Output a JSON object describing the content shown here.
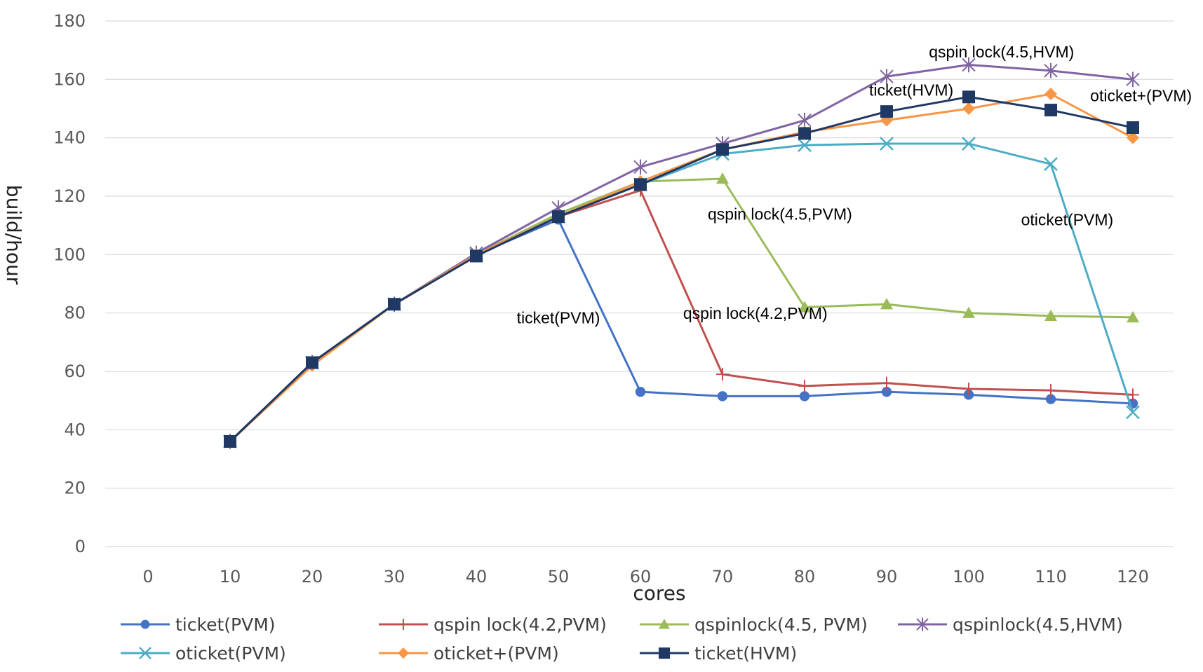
{
  "chart_data": {
    "type": "line",
    "xlabel": "cores",
    "ylabel": "build/hour",
    "x_ticks": [
      "0",
      "10",
      "20",
      "30",
      "40",
      "50",
      "60",
      "70",
      "80",
      "90",
      "100",
      "110",
      "120"
    ],
    "y_ticks": [
      "0",
      "20",
      "40",
      "60",
      "80",
      "100",
      "120",
      "140",
      "160",
      "180"
    ],
    "ylim": [
      0,
      180
    ],
    "x": [
      10,
      20,
      30,
      40,
      50,
      60,
      70,
      80,
      90,
      100,
      110,
      120
    ],
    "grid": "horizontal",
    "legend_position": "bottom",
    "series": [
      {
        "name": "ticket(PVM)",
        "color": "#4472C4",
        "marker": "circle",
        "values": [
          36,
          63,
          83,
          100,
          112,
          53,
          51.5,
          51.5,
          53,
          52,
          50.5,
          49
        ]
      },
      {
        "name": "qspin lock(4.2,PVM)",
        "color": "#C0504D",
        "marker": "plus",
        "values": [
          36,
          63,
          83,
          100,
          113,
          122,
          59,
          55,
          56,
          54,
          53.5,
          52
        ]
      },
      {
        "name": "qspinlock(4.5, PVM)",
        "color": "#9BBB59",
        "marker": "triangle",
        "values": [
          36,
          63,
          83,
          100,
          114,
          125,
          126,
          82,
          83,
          80,
          79,
          78.5
        ]
      },
      {
        "name": "qspinlock(4.5,HVM)",
        "color": "#8064A2",
        "marker": "star",
        "values": [
          36,
          63,
          83,
          100.5,
          116,
          130,
          138,
          146,
          161,
          165,
          163,
          160
        ]
      },
      {
        "name": "oticket(PVM)",
        "color": "#4BACC6",
        "marker": "x",
        "values": [
          36,
          63,
          83,
          100,
          113,
          124,
          134.5,
          137.5,
          138,
          138,
          131,
          46
        ]
      },
      {
        "name": "oticket+(PVM)",
        "color": "#F79646",
        "marker": "diamond",
        "values": [
          36,
          62,
          83,
          100,
          113,
          125,
          136,
          142,
          146,
          150,
          155,
          140
        ]
      },
      {
        "name": "ticket(HVM)",
        "color": "#1F3864",
        "marker": "square",
        "values": [
          36,
          63,
          83,
          99.5,
          113,
          124,
          136,
          141.5,
          149,
          154,
          149.5,
          143.5
        ]
      }
    ],
    "annotations": [
      {
        "text": "qspin lock(4.5,HVM)",
        "x": 104,
        "y": 167.5
      },
      {
        "text": "ticket(HVM)",
        "x": 93,
        "y": 154.5
      },
      {
        "text": "oticket+(PVM)",
        "x": 121,
        "y": 152.5
      },
      {
        "text": "qspin lock(4.5,PVM)",
        "x": 77,
        "y": 112
      },
      {
        "text": "oticket(PVM)",
        "x": 112,
        "y": 110
      },
      {
        "text": "qspin lock(4.2,PVM)",
        "x": 74,
        "y": 78
      },
      {
        "text": "ticket(PVM)",
        "x": 50,
        "y": 76.5
      }
    ]
  }
}
